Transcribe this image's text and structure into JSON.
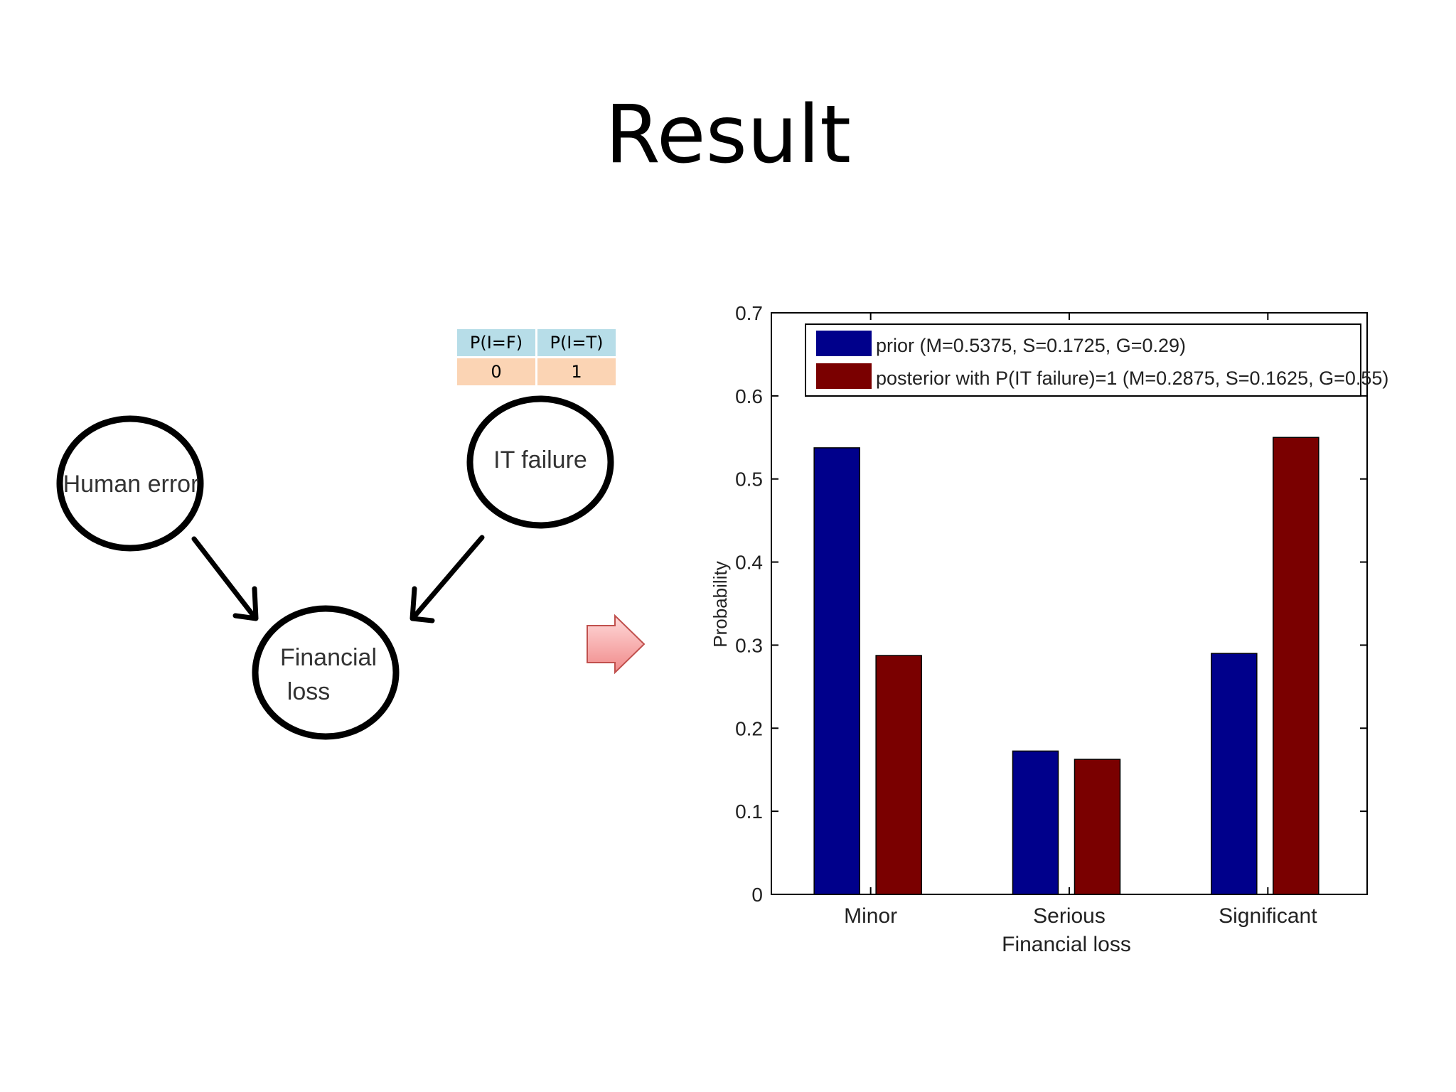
{
  "slide": {
    "title": "Result"
  },
  "diagram": {
    "nodes": {
      "human_error": "Human error",
      "it_failure": "IT failure",
      "financial_loss_line1": "Financial",
      "financial_loss_line2": "loss"
    },
    "cpt": {
      "headers": [
        "P(I=F)",
        "P(I=T)"
      ],
      "values": [
        "0",
        "1"
      ]
    },
    "arrow_icon": "right-arrow-icon"
  },
  "chart_data": {
    "type": "bar",
    "categories": [
      "Minor",
      "Serious",
      "Significant"
    ],
    "series": [
      {
        "name": "prior (M=0.5375, S=0.1725, G=0.29)",
        "values": [
          0.5375,
          0.1725,
          0.29
        ],
        "color": "#00008b"
      },
      {
        "name": "posterior with P(IT failure)=1 (M=0.2875, S=0.1625, G=0.55)",
        "values": [
          0.2875,
          0.1625,
          0.55
        ],
        "color": "#7a0000"
      }
    ],
    "xlabel": "Financial loss",
    "ylabel": "Probability",
    "ylim": [
      0,
      0.7
    ],
    "yticks": [
      "0",
      "0.1",
      "0.2",
      "0.3",
      "0.4",
      "0.5",
      "0.6",
      "0.7"
    ],
    "legend_position": "top",
    "grid": false
  }
}
